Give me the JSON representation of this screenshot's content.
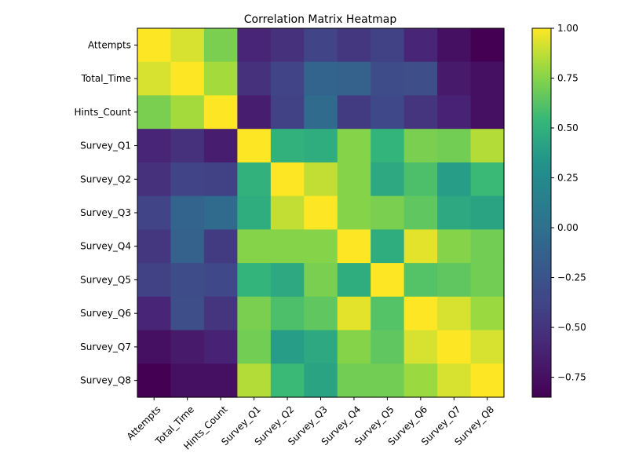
{
  "chart_data": {
    "type": "heatmap",
    "title": "Correlation Matrix Heatmap",
    "colormap": "viridis",
    "variables": [
      "Attempts",
      "Total_Time",
      "Hints_Count",
      "Survey_Q1",
      "Survey_Q2",
      "Survey_Q3",
      "Survey_Q4",
      "Survey_Q5",
      "Survey_Q6",
      "Survey_Q7",
      "Survey_Q8"
    ],
    "values": [
      [
        1.0,
        0.92,
        0.72,
        -0.6,
        -0.52,
        -0.38,
        -0.48,
        -0.4,
        -0.6,
        -0.75,
        -0.85
      ],
      [
        0.92,
        1.0,
        0.82,
        -0.52,
        -0.38,
        -0.1,
        -0.12,
        -0.32,
        -0.3,
        -0.68,
        -0.75
      ],
      [
        0.72,
        0.82,
        1.0,
        -0.65,
        -0.4,
        -0.05,
        -0.45,
        -0.35,
        -0.5,
        -0.62,
        -0.75
      ],
      [
        -0.6,
        -0.52,
        -0.65,
        1.0,
        0.5,
        0.48,
        0.75,
        0.52,
        0.72,
        0.7,
        0.85
      ],
      [
        -0.52,
        -0.38,
        -0.4,
        0.5,
        1.0,
        0.88,
        0.75,
        0.45,
        0.6,
        0.38,
        0.55
      ],
      [
        -0.38,
        -0.1,
        -0.05,
        0.48,
        0.88,
        1.0,
        0.75,
        0.72,
        0.65,
        0.45,
        0.42
      ],
      [
        -0.48,
        -0.12,
        -0.45,
        0.75,
        0.75,
        0.75,
        1.0,
        0.48,
        0.95,
        0.75,
        0.7
      ],
      [
        -0.4,
        -0.32,
        -0.35,
        0.52,
        0.45,
        0.72,
        0.48,
        1.0,
        0.62,
        0.65,
        0.7
      ],
      [
        -0.6,
        -0.3,
        -0.5,
        0.72,
        0.6,
        0.65,
        0.95,
        0.62,
        1.0,
        0.92,
        0.8
      ],
      [
        -0.75,
        -0.68,
        -0.62,
        0.7,
        0.38,
        0.45,
        0.75,
        0.65,
        0.92,
        1.0,
        0.92
      ],
      [
        -0.85,
        -0.75,
        -0.75,
        0.85,
        0.55,
        0.42,
        0.7,
        0.7,
        0.8,
        0.92,
        1.0
      ]
    ],
    "vmin": -0.85,
    "vmax": 1.0,
    "colorbar": {
      "ticks": [
        1.0,
        0.75,
        0.5,
        0.25,
        0.0,
        -0.25,
        -0.5,
        -0.75
      ],
      "tick_labels": [
        "1.00",
        "0.75",
        "0.50",
        "0.25",
        "0.00",
        "−0.25",
        "−0.50",
        "−0.75"
      ]
    }
  }
}
